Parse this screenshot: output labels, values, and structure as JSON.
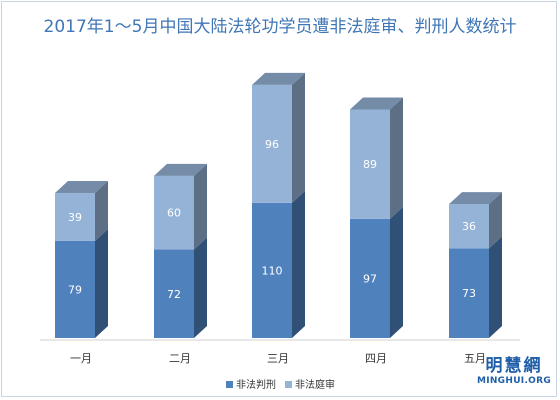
{
  "chart_data": {
    "type": "bar",
    "stacked": true,
    "title": "2017年1～5月中国大陆法轮功学员遭非法庭审、判刑人数统计",
    "categories": [
      "一月",
      "二月",
      "三月",
      "四月",
      "五月"
    ],
    "series": [
      {
        "name": "非法判刑",
        "values": [
          79,
          72,
          110,
          97,
          73
        ],
        "color": "#4f81bd"
      },
      {
        "name": "非法庭审",
        "values": [
          39,
          60,
          96,
          89,
          36
        ],
        "color": "#95b3d7"
      }
    ],
    "ylim": [
      0,
      210
    ],
    "grid": false,
    "legend": "bottom"
  },
  "watermark": {
    "cn": "明慧網",
    "en": "MINGHUI.ORG"
  }
}
